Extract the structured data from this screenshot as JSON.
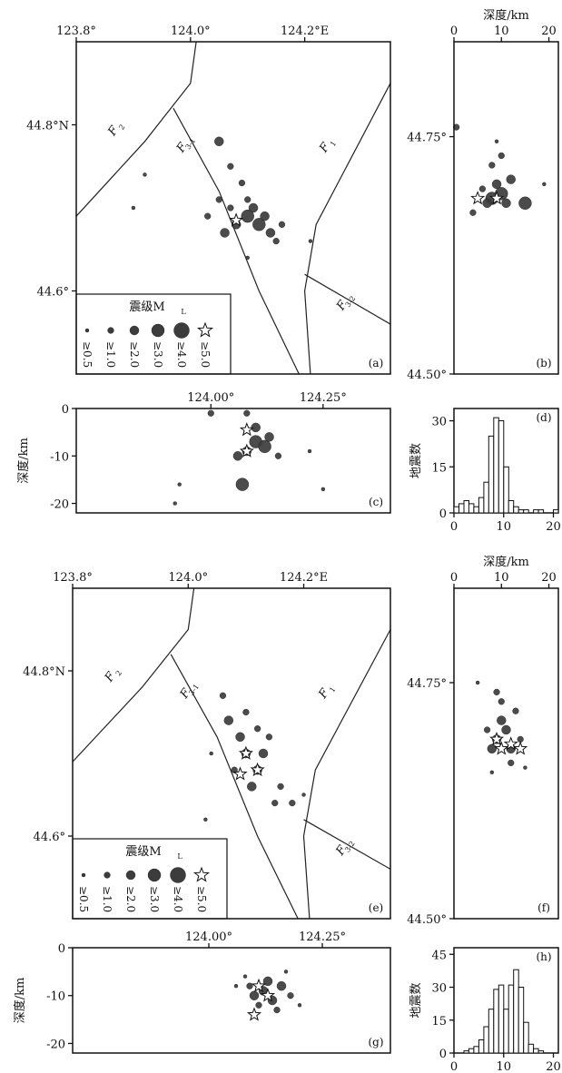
{
  "legend": {
    "title": "震级M",
    "title_sub": "L",
    "labels": [
      "≥0.5",
      "≥1.0",
      "≥2.0",
      "≥3.0",
      "≥4.0",
      "≥5.0"
    ]
  },
  "chart_data": [
    {
      "type": "scatter",
      "panel": "(a)",
      "xticks": [
        "123.8°",
        "124.0°",
        "124.2°E"
      ],
      "yticks": [
        "44.8°N",
        "44.6°"
      ],
      "xlim": [
        123.8,
        124.35
      ],
      "ylim": [
        44.5,
        44.9
      ],
      "faults": [
        {
          "label": "F",
          "sub": "1",
          "points": [
            [
              124.35,
              44.85
            ],
            [
              124.22,
              44.68
            ],
            [
              124.2,
              44.6
            ],
            [
              124.21,
              44.5
            ]
          ]
        },
        {
          "label": "F",
          "sub": "2",
          "points": [
            [
              123.8,
              44.69
            ],
            [
              123.92,
              44.78
            ],
            [
              124.0,
              44.85
            ],
            [
              124.01,
              44.9
            ]
          ]
        },
        {
          "label": "F",
          "sub": "3-1",
          "points": [
            [
              123.97,
              44.82
            ],
            [
              124.05,
              44.72
            ],
            [
              124.12,
              44.6
            ],
            [
              124.19,
              44.5
            ]
          ]
        },
        {
          "label": "F",
          "sub": "3-2",
          "points": [
            [
              124.2,
              44.62
            ],
            [
              124.35,
              44.56
            ]
          ]
        }
      ],
      "fault_labels": [
        {
          "text": "F",
          "sub": "2",
          "x": 123.87,
          "y": 44.79
        },
        {
          "text": "F",
          "sub": "3-1",
          "x": 123.99,
          "y": 44.77
        },
        {
          "text": "F",
          "sub": "1",
          "x": 124.24,
          "y": 44.77
        },
        {
          "text": "F",
          "sub": "3-2",
          "x": 124.27,
          "y": 44.58
        }
      ],
      "events": [
        {
          "x": 124.1,
          "y": 44.69,
          "mag": 3.0
        },
        {
          "x": 124.12,
          "y": 44.68,
          "mag": 3.0
        },
        {
          "x": 124.11,
          "y": 44.7,
          "mag": 2.0
        },
        {
          "x": 124.13,
          "y": 44.69,
          "mag": 2.0
        },
        {
          "x": 124.08,
          "y": 44.68,
          "mag": 2.0
        },
        {
          "x": 124.14,
          "y": 44.67,
          "mag": 2.0
        },
        {
          "x": 124.06,
          "y": 44.67,
          "mag": 2.0
        },
        {
          "x": 124.1,
          "y": 44.71,
          "mag": 1.0
        },
        {
          "x": 124.07,
          "y": 44.7,
          "mag": 1.0
        },
        {
          "x": 124.05,
          "y": 44.71,
          "mag": 1.0
        },
        {
          "x": 124.09,
          "y": 44.73,
          "mag": 1.0
        },
        {
          "x": 124.07,
          "y": 44.75,
          "mag": 1.0
        },
        {
          "x": 124.05,
          "y": 44.78,
          "mag": 2.0
        },
        {
          "x": 124.03,
          "y": 44.69,
          "mag": 1.0
        },
        {
          "x": 124.15,
          "y": 44.66,
          "mag": 1.0
        },
        {
          "x": 124.21,
          "y": 44.66,
          "mag": 0.5
        },
        {
          "x": 123.92,
          "y": 44.74,
          "mag": 0.5
        },
        {
          "x": 123.9,
          "y": 44.7,
          "mag": 0.5
        },
        {
          "x": 124.1,
          "y": 44.64,
          "mag": 0.5
        },
        {
          "x": 124.16,
          "y": 44.68,
          "mag": 1.0
        }
      ],
      "stars": [
        {
          "x": 124.08,
          "y": 44.685
        }
      ]
    },
    {
      "type": "scatter",
      "panel": "(b)",
      "xlabel": "深度/km",
      "xticks": [
        "0",
        "10",
        "20"
      ],
      "yticks": [
        "44.75°",
        "44.50°"
      ],
      "xlim": [
        0,
        22
      ],
      "ylim": [
        44.5,
        44.85
      ],
      "events": [
        {
          "x": 8,
          "y": 44.685,
          "mag": 3.0
        },
        {
          "x": 10,
          "y": 44.69,
          "mag": 3.0
        },
        {
          "x": 9,
          "y": 44.7,
          "mag": 2.0
        },
        {
          "x": 7,
          "y": 44.68,
          "mag": 2.0
        },
        {
          "x": 11,
          "y": 44.68,
          "mag": 2.0
        },
        {
          "x": 6,
          "y": 44.695,
          "mag": 1.0
        },
        {
          "x": 12,
          "y": 44.705,
          "mag": 2.0
        },
        {
          "x": 8,
          "y": 44.72,
          "mag": 1.0
        },
        {
          "x": 10,
          "y": 44.73,
          "mag": 1.0
        },
        {
          "x": 15,
          "y": 44.68,
          "mag": 3.0
        },
        {
          "x": 0.5,
          "y": 44.76,
          "mag": 1.0
        },
        {
          "x": 19,
          "y": 44.7,
          "mag": 0.5
        },
        {
          "x": 9,
          "y": 44.745,
          "mag": 0.5
        },
        {
          "x": 4,
          "y": 44.67,
          "mag": 1.0
        }
      ],
      "stars": [
        {
          "x": 5,
          "y": 44.685
        },
        {
          "x": 9,
          "y": 44.685
        }
      ]
    },
    {
      "type": "scatter",
      "panel": "(c)",
      "ylabel": "深度/km",
      "xticks": [
        "124.00°",
        "124.25°"
      ],
      "yticks": [
        "0",
        "-10",
        "-20"
      ],
      "xlim": [
        123.7,
        124.4
      ],
      "ylim": [
        -22,
        0
      ],
      "events": [
        {
          "x": 124.1,
          "y": -7,
          "mag": 3.0
        },
        {
          "x": 124.12,
          "y": -8,
          "mag": 3.0
        },
        {
          "x": 124.08,
          "y": -9,
          "mag": 2.0
        },
        {
          "x": 124.13,
          "y": -6,
          "mag": 2.0
        },
        {
          "x": 124.1,
          "y": -4,
          "mag": 2.0
        },
        {
          "x": 124.06,
          "y": -10,
          "mag": 2.0
        },
        {
          "x": 124.15,
          "y": -10,
          "mag": 1.0
        },
        {
          "x": 124.07,
          "y": -16,
          "mag": 3.0
        },
        {
          "x": 124.0,
          "y": -1,
          "mag": 1.0
        },
        {
          "x": 124.08,
          "y": -1,
          "mag": 1.0
        },
        {
          "x": 123.93,
          "y": -16,
          "mag": 0.5
        },
        {
          "x": 124.22,
          "y": -9,
          "mag": 0.5
        },
        {
          "x": 123.92,
          "y": -20,
          "mag": 0.5
        },
        {
          "x": 124.25,
          "y": -17,
          "mag": 0.5
        }
      ],
      "stars": [
        {
          "x": 124.08,
          "y": -4.5
        },
        {
          "x": 124.08,
          "y": -9
        }
      ]
    },
    {
      "type": "bar",
      "panel": "(d)",
      "ylabel": "地震数",
      "xticks": [
        "0",
        "10",
        "20"
      ],
      "yticks": [
        "0",
        "15",
        "30"
      ],
      "xlim": [
        0,
        21
      ],
      "ylim": [
        0,
        34
      ],
      "bin_width": 1,
      "x": [
        0,
        1,
        2,
        3,
        4,
        5,
        6,
        7,
        8,
        9,
        10,
        11,
        12,
        13,
        14,
        15,
        16,
        17,
        18,
        19,
        20
      ],
      "values": [
        2,
        3,
        4,
        3,
        2,
        5,
        10,
        25,
        31,
        30,
        15,
        4,
        2,
        1,
        1,
        0,
        1,
        1,
        0,
        0,
        1
      ]
    },
    {
      "type": "scatter",
      "panel": "(e)",
      "xticks": [
        "123.8°",
        "124.0°",
        "124.2°E"
      ],
      "yticks": [
        "44.8°N",
        "44.6°"
      ],
      "xlim": [
        123.8,
        124.35
      ],
      "ylim": [
        44.5,
        44.9
      ],
      "faults": [
        {
          "label": "F",
          "sub": "1",
          "points": [
            [
              124.35,
              44.85
            ],
            [
              124.22,
              44.68
            ],
            [
              124.2,
              44.6
            ],
            [
              124.21,
              44.5
            ]
          ]
        },
        {
          "label": "F",
          "sub": "2",
          "points": [
            [
              123.8,
              44.69
            ],
            [
              123.92,
              44.78
            ],
            [
              124.0,
              44.85
            ],
            [
              124.01,
              44.9
            ]
          ]
        },
        {
          "label": "F",
          "sub": "3-1",
          "points": [
            [
              123.97,
              44.82
            ],
            [
              124.05,
              44.72
            ],
            [
              124.12,
              44.6
            ],
            [
              124.19,
              44.5
            ]
          ]
        },
        {
          "label": "F",
          "sub": "3-2",
          "points": [
            [
              124.2,
              44.62
            ],
            [
              124.35,
              44.56
            ]
          ]
        }
      ],
      "fault_labels": [
        {
          "text": "F",
          "sub": "2",
          "x": 123.87,
          "y": 44.79
        },
        {
          "text": "F",
          "sub": "3-1",
          "x": 124.0,
          "y": 44.77
        },
        {
          "text": "F",
          "sub": "1",
          "x": 124.24,
          "y": 44.77
        },
        {
          "text": "F",
          "sub": "3-2",
          "x": 124.27,
          "y": 44.58
        }
      ],
      "events": [
        {
          "x": 124.1,
          "y": 44.7,
          "mag": 2.0
        },
        {
          "x": 124.12,
          "y": 44.68,
          "mag": 2.0
        },
        {
          "x": 124.09,
          "y": 44.72,
          "mag": 2.0
        },
        {
          "x": 124.07,
          "y": 44.74,
          "mag": 2.0
        },
        {
          "x": 124.13,
          "y": 44.7,
          "mag": 2.0
        },
        {
          "x": 124.11,
          "y": 44.66,
          "mag": 2.0
        },
        {
          "x": 124.15,
          "y": 44.64,
          "mag": 1.0
        },
        {
          "x": 124.1,
          "y": 44.75,
          "mag": 1.0
        },
        {
          "x": 124.06,
          "y": 44.77,
          "mag": 1.0
        },
        {
          "x": 124.14,
          "y": 44.72,
          "mag": 1.0
        },
        {
          "x": 124.16,
          "y": 44.66,
          "mag": 1.0
        },
        {
          "x": 124.18,
          "y": 44.64,
          "mag": 1.0
        },
        {
          "x": 124.08,
          "y": 44.68,
          "mag": 1.0
        },
        {
          "x": 124.12,
          "y": 44.73,
          "mag": 1.0
        },
        {
          "x": 124.2,
          "y": 44.65,
          "mag": 0.5
        },
        {
          "x": 124.03,
          "y": 44.62,
          "mag": 0.5
        },
        {
          "x": 124.04,
          "y": 44.7,
          "mag": 0.5
        }
      ],
      "stars": [
        {
          "x": 124.1,
          "y": 44.7
        },
        {
          "x": 124.09,
          "y": 44.675
        },
        {
          "x": 124.12,
          "y": 44.68
        }
      ]
    },
    {
      "type": "scatter",
      "panel": "(f)",
      "xlabel": "深度/km",
      "xticks": [
        "0",
        "10",
        "20"
      ],
      "yticks": [
        "44.75°",
        "44.50°"
      ],
      "xlim": [
        0,
        22
      ],
      "ylim": [
        44.5,
        44.85
      ],
      "events": [
        {
          "x": 9,
          "y": 44.69,
          "mag": 2.0
        },
        {
          "x": 11,
          "y": 44.7,
          "mag": 2.0
        },
        {
          "x": 8,
          "y": 44.68,
          "mag": 2.0
        },
        {
          "x": 12,
          "y": 44.68,
          "mag": 2.0
        },
        {
          "x": 10,
          "y": 44.71,
          "mag": 2.0
        },
        {
          "x": 7,
          "y": 44.7,
          "mag": 1.0
        },
        {
          "x": 13,
          "y": 44.72,
          "mag": 1.0
        },
        {
          "x": 10,
          "y": 44.73,
          "mag": 1.0
        },
        {
          "x": 9,
          "y": 44.74,
          "mag": 1.0
        },
        {
          "x": 14,
          "y": 44.69,
          "mag": 1.0
        },
        {
          "x": 12,
          "y": 44.665,
          "mag": 1.0
        },
        {
          "x": 15,
          "y": 44.66,
          "mag": 0.5
        },
        {
          "x": 5,
          "y": 44.75,
          "mag": 0.5
        },
        {
          "x": 8,
          "y": 44.655,
          "mag": 0.5
        }
      ],
      "stars": [
        {
          "x": 10,
          "y": 44.68
        },
        {
          "x": 12,
          "y": 44.685
        },
        {
          "x": 14,
          "y": 44.68
        },
        {
          "x": 9,
          "y": 44.69
        }
      ]
    },
    {
      "type": "scatter",
      "panel": "(g)",
      "ylabel": "深度/km",
      "xticks": [
        "124.00°",
        "124.25°"
      ],
      "yticks": [
        "0",
        "-10",
        "-20"
      ],
      "xlim": [
        123.7,
        124.4
      ],
      "ylim": [
        -22,
        0
      ],
      "events": [
        {
          "x": 124.12,
          "y": -9,
          "mag": 2.0
        },
        {
          "x": 124.14,
          "y": -11,
          "mag": 2.0
        },
        {
          "x": 124.1,
          "y": -10,
          "mag": 2.0
        },
        {
          "x": 124.16,
          "y": -8,
          "mag": 2.0
        },
        {
          "x": 124.13,
          "y": -7,
          "mag": 2.0
        },
        {
          "x": 124.11,
          "y": -12,
          "mag": 1.0
        },
        {
          "x": 124.18,
          "y": -10,
          "mag": 1.0
        },
        {
          "x": 124.09,
          "y": -8,
          "mag": 1.0
        },
        {
          "x": 124.15,
          "y": -13,
          "mag": 1.0
        },
        {
          "x": 124.08,
          "y": -6,
          "mag": 0.5
        },
        {
          "x": 124.2,
          "y": -12,
          "mag": 0.5
        },
        {
          "x": 124.17,
          "y": -5,
          "mag": 0.5
        },
        {
          "x": 124.06,
          "y": -8,
          "mag": 0.5
        }
      ],
      "stars": [
        {
          "x": 124.11,
          "y": -8
        },
        {
          "x": 124.13,
          "y": -10
        },
        {
          "x": 124.1,
          "y": -14
        }
      ]
    },
    {
      "type": "bar",
      "panel": "(h)",
      "ylabel": "地震数",
      "xticks": [
        "0",
        "10",
        "20"
      ],
      "yticks": [
        "0",
        "15",
        "30",
        "45"
      ],
      "xlim": [
        0,
        21
      ],
      "ylim": [
        0,
        48
      ],
      "bin_width": 1,
      "x": [
        0,
        1,
        2,
        3,
        4,
        5,
        6,
        7,
        8,
        9,
        10,
        11,
        12,
        13,
        14,
        15,
        16,
        17,
        18,
        19,
        20
      ],
      "values": [
        0,
        0,
        1,
        2,
        3,
        6,
        12,
        20,
        29,
        31,
        20,
        31,
        38,
        30,
        14,
        4,
        2,
        1,
        0,
        0,
        0
      ]
    }
  ]
}
